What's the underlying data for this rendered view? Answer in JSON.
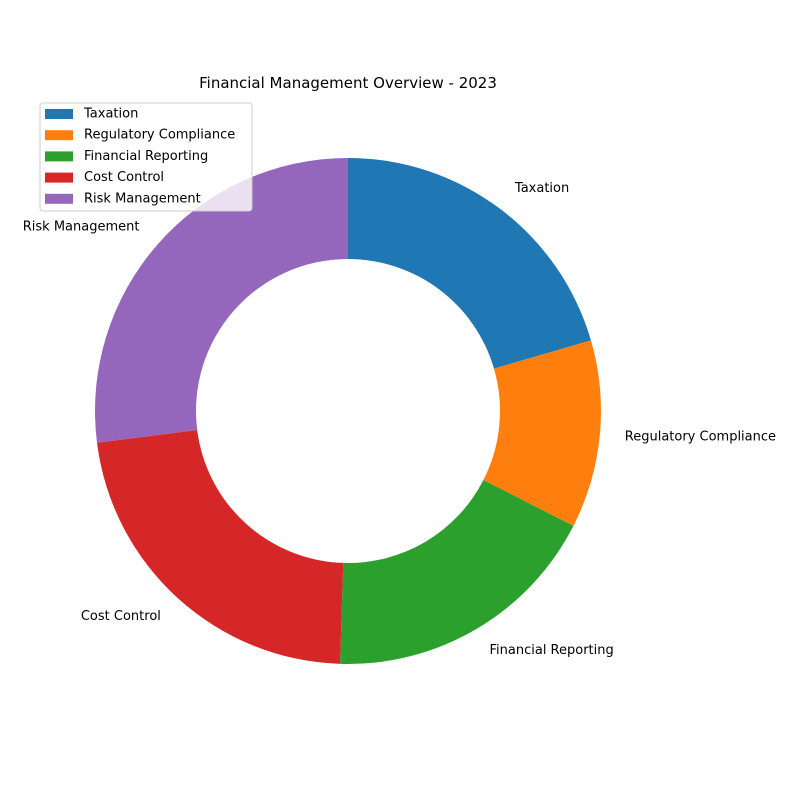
{
  "chart_data": {
    "type": "pie",
    "variant": "donut",
    "title": "Financial Management Overview - 2023",
    "categories": [
      "Taxation",
      "Regulatory Compliance",
      "Financial Reporting",
      "Cost Control",
      "Risk Management"
    ],
    "values": [
      20.5,
      12.0,
      18.0,
      22.5,
      27.0
    ],
    "colors": [
      "#1f77b4",
      "#ff7f0e",
      "#2ca02c",
      "#d62728",
      "#9467bd"
    ],
    "start_angle_deg": 90,
    "direction": "clockwise",
    "legend": {
      "position": "upper-left",
      "entries": [
        "Taxation",
        "Regulatory Compliance",
        "Financial Reporting",
        "Cost Control",
        "Risk Management"
      ]
    }
  }
}
